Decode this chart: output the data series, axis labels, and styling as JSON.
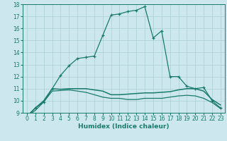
{
  "title": "",
  "xlabel": "Humidex (Indice chaleur)",
  "x_values": [
    0,
    1,
    2,
    3,
    4,
    5,
    6,
    7,
    8,
    9,
    10,
    11,
    12,
    13,
    14,
    15,
    16,
    17,
    18,
    19,
    20,
    21,
    22,
    23
  ],
  "line_max": [
    8.7,
    9.4,
    9.9,
    11.0,
    12.1,
    12.9,
    13.5,
    13.6,
    13.7,
    15.4,
    17.1,
    17.2,
    17.4,
    17.5,
    17.8,
    15.2,
    15.8,
    12.0,
    12.0,
    11.2,
    11.0,
    11.1,
    10.0,
    9.4
  ],
  "line_mean": [
    8.7,
    9.4,
    10.0,
    11.0,
    10.95,
    11.0,
    11.0,
    11.0,
    10.9,
    10.8,
    10.5,
    10.5,
    10.55,
    10.6,
    10.65,
    10.65,
    10.7,
    10.75,
    10.9,
    11.0,
    11.0,
    10.8,
    10.1,
    9.65
  ],
  "line_min": [
    8.7,
    9.2,
    9.9,
    10.8,
    10.85,
    10.9,
    10.8,
    10.7,
    10.5,
    10.3,
    10.2,
    10.2,
    10.1,
    10.1,
    10.2,
    10.2,
    10.2,
    10.3,
    10.4,
    10.45,
    10.4,
    10.2,
    9.85,
    9.35
  ],
  "line_color": "#1a7a6e",
  "bg_color": "#cce8ee",
  "grid_color": "#aacdd5",
  "ylim_min": 9,
  "ylim_max": 18,
  "yticks": [
    9,
    10,
    11,
    12,
    13,
    14,
    15,
    16,
    17,
    18
  ],
  "xticks": [
    0,
    1,
    2,
    3,
    4,
    5,
    6,
    7,
    8,
    9,
    10,
    11,
    12,
    13,
    14,
    15,
    16,
    17,
    18,
    19,
    20,
    21,
    22,
    23
  ],
  "tick_fontsize": 5.5,
  "xlabel_fontsize": 6.5
}
